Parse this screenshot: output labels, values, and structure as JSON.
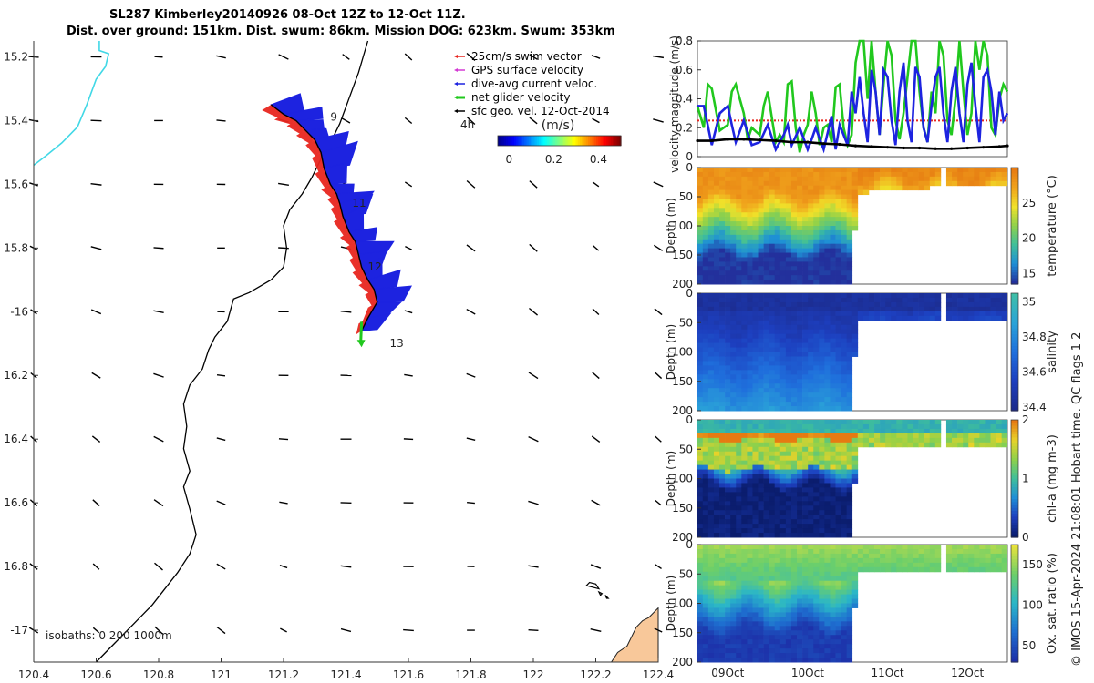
{
  "header": {
    "line1": "SL287 Kimberley20140926 08-Oct 12Z to 12-Oct 11Z.",
    "line2": "Dist. over ground: 151km. Dist. swum: 86km. Mission DOG: 623km. Swum: 353km"
  },
  "credit": "© IMOS 15-Apr-2024 21:08:01 Hobart time. QC flags 1  2",
  "colors": {
    "swim": "#e8261f",
    "gps": "#d43ad4",
    "dive": "#1d23e0",
    "net": "#21c81e",
    "geo": "#000000",
    "coast": "#000000",
    "isobath": "#41d8e6",
    "land": "#f8c89a"
  },
  "chart_data": [
    {
      "type": "map",
      "name": "track map",
      "xlim": [
        120.4,
        122.4
      ],
      "ylim": [
        -17.1,
        -15.15
      ],
      "xticks": [
        {
          "v": 120.4,
          "t": "120.4"
        },
        {
          "v": 120.6,
          "t": "120.6"
        },
        {
          "v": 120.8,
          "t": "120.8"
        },
        {
          "v": 121,
          "t": "121"
        },
        {
          "v": 121.2,
          "t": "121.2"
        },
        {
          "v": 121.4,
          "t": "121.4"
        },
        {
          "v": 121.6,
          "t": "121.6"
        },
        {
          "v": 121.8,
          "t": "121.8"
        },
        {
          "v": 122,
          "t": "122"
        },
        {
          "v": 122.2,
          "t": "122.2"
        },
        {
          "v": 122.4,
          "t": "122.4"
        }
      ],
      "yticks": [
        {
          "v": -15.2,
          "t": "15.2"
        },
        {
          "v": -15.4,
          "t": "15.4"
        },
        {
          "v": -15.6,
          "t": "15.6"
        },
        {
          "v": -15.8,
          "t": "15.8"
        },
        {
          "v": -16.0,
          "t": "-16"
        },
        {
          "v": -16.2,
          "t": "16.2"
        },
        {
          "v": -16.4,
          "t": "16.4"
        },
        {
          "v": -16.6,
          "t": "16.6"
        },
        {
          "v": -16.8,
          "t": "16.8"
        },
        {
          "v": -17.0,
          "t": "-17"
        }
      ],
      "legend": [
        {
          "key": "swim",
          "label": "25cm/s swim vector"
        },
        {
          "key": "gps",
          "label": "GPS surface velocity"
        },
        {
          "key": "dive",
          "label": "dive-avg current veloc."
        },
        {
          "key": "net",
          "label": "net glider velocity"
        },
        {
          "key": "geo",
          "label": "sfc geo. vel. 12-Oct-2014"
        }
      ],
      "colorbar": {
        "label": "(m/s)",
        "ticks": [
          {
            "v": 0,
            "t": "0"
          },
          {
            "v": 0.2,
            "t": "0.2"
          },
          {
            "v": 0.4,
            "t": "0.4"
          }
        ],
        "range": [
          -0.05,
          0.5
        ]
      },
      "extra_labels": {
        "hours": "4h",
        "isobaths": "isobaths: 0   200  1000m"
      },
      "day_labels": [
        {
          "t": "9",
          "lon": 121.35,
          "lat": -15.4
        },
        {
          "t": "11",
          "lon": 121.42,
          "lat": -15.67
        },
        {
          "t": "12",
          "lon": 121.47,
          "lat": -15.87
        },
        {
          "t": "13",
          "lon": 121.54,
          "lat": -16.11
        }
      ],
      "track": [
        [
          121.16,
          -15.35
        ],
        [
          121.2,
          -15.38
        ],
        [
          121.24,
          -15.4
        ],
        [
          121.27,
          -15.43
        ],
        [
          121.3,
          -15.46
        ],
        [
          121.32,
          -15.5
        ],
        [
          121.33,
          -15.55
        ],
        [
          121.35,
          -15.6
        ],
        [
          121.37,
          -15.63
        ],
        [
          121.38,
          -15.66
        ],
        [
          121.39,
          -15.7
        ],
        [
          121.41,
          -15.75
        ],
        [
          121.43,
          -15.78
        ],
        [
          121.44,
          -15.82
        ],
        [
          121.45,
          -15.86
        ],
        [
          121.47,
          -15.9
        ],
        [
          121.49,
          -15.93
        ],
        [
          121.5,
          -15.97
        ],
        [
          121.47,
          -16.02
        ],
        [
          121.45,
          -16.06
        ]
      ],
      "coastline": [
        [
          121.47,
          -15.15
        ],
        [
          121.44,
          -15.25
        ],
        [
          121.41,
          -15.33
        ],
        [
          121.38,
          -15.41
        ],
        [
          121.35,
          -15.47
        ],
        [
          121.32,
          -15.52
        ],
        [
          121.29,
          -15.58
        ],
        [
          121.26,
          -15.63
        ],
        [
          121.22,
          -15.68
        ],
        [
          121.2,
          -15.73
        ],
        [
          121.21,
          -15.8
        ],
        [
          121.2,
          -15.86
        ],
        [
          121.16,
          -15.9
        ],
        [
          121.09,
          -15.94
        ],
        [
          121.04,
          -15.96
        ],
        [
          121.02,
          -16.03
        ],
        [
          120.98,
          -16.08
        ],
        [
          120.96,
          -16.12
        ],
        [
          120.94,
          -16.18
        ],
        [
          120.9,
          -16.23
        ],
        [
          120.88,
          -16.29
        ],
        [
          120.89,
          -16.36
        ],
        [
          120.88,
          -16.43
        ],
        [
          120.9,
          -16.5
        ],
        [
          120.88,
          -16.55
        ],
        [
          120.9,
          -16.62
        ],
        [
          120.92,
          -16.7
        ],
        [
          120.9,
          -16.76
        ],
        [
          120.86,
          -16.82
        ],
        [
          120.82,
          -16.87
        ],
        [
          120.78,
          -16.92
        ],
        [
          120.74,
          -16.96
        ],
        [
          120.7,
          -17.0
        ],
        [
          120.66,
          -17.04
        ],
        [
          120.6,
          -17.1
        ]
      ],
      "isobath": [
        [
          120.61,
          -15.15
        ],
        [
          120.61,
          -15.18
        ],
        [
          120.64,
          -15.19
        ],
        [
          120.63,
          -15.23
        ],
        [
          120.6,
          -15.27
        ],
        [
          120.57,
          -15.35
        ],
        [
          120.54,
          -15.42
        ],
        [
          120.49,
          -15.47
        ],
        [
          120.44,
          -15.51
        ],
        [
          120.4,
          -15.54
        ]
      ],
      "islands": [
        [
          [
            122.18,
            -16.85
          ],
          [
            122.2,
            -16.855
          ],
          [
            122.21,
            -16.87
          ],
          [
            122.19,
            -16.865
          ],
          [
            122.17,
            -16.86
          ]
        ],
        [
          [
            122.21,
            -16.88
          ],
          [
            122.22,
            -16.885
          ],
          [
            122.215,
            -16.89
          ]
        ],
        [
          [
            122.23,
            -16.89
          ],
          [
            122.24,
            -16.9
          ],
          [
            122.235,
            -16.9
          ]
        ]
      ],
      "land": [
        [
          122.4,
          -16.93
        ],
        [
          122.37,
          -16.96
        ],
        [
          122.35,
          -16.97
        ],
        [
          122.33,
          -16.99
        ],
        [
          122.32,
          -17.01
        ],
        [
          122.3,
          -17.05
        ],
        [
          122.27,
          -17.07
        ],
        [
          122.25,
          -17.1
        ],
        [
          122.4,
          -17.1
        ]
      ]
    },
    {
      "type": "line",
      "name": "velocity magnitude",
      "ylabel": "velocity magnitude (m/s)",
      "xlim": [
        8.62,
        12.5
      ],
      "ylim": [
        0,
        0.8
      ],
      "yticks": [
        0,
        0.2,
        0.4,
        0.6,
        0.8
      ],
      "series": [
        {
          "name": "swim speed",
          "color_key": "swim",
          "style": "dotted",
          "x": [
            8.62,
            12.5
          ],
          "y": [
            0.25,
            0.25
          ]
        },
        {
          "name": "net glider velocity",
          "color_key": "net",
          "x": [
            8.62,
            8.7,
            8.75,
            8.8,
            8.9,
            9.0,
            9.05,
            9.1,
            9.2,
            9.25,
            9.3,
            9.4,
            9.45,
            9.5,
            9.6,
            9.65,
            9.7,
            9.75,
            9.8,
            9.85,
            9.9,
            9.95,
            10.0,
            10.05,
            10.1,
            10.15,
            10.2,
            10.25,
            10.3,
            10.35,
            10.4,
            10.45,
            10.5,
            10.55,
            10.6,
            10.65,
            10.7,
            10.75,
            10.8,
            10.85,
            10.9,
            10.95,
            11.0,
            11.05,
            11.1,
            11.15,
            11.2,
            11.25,
            11.3,
            11.35,
            11.4,
            11.45,
            11.5,
            11.55,
            11.6,
            11.65,
            11.7,
            11.75,
            11.8,
            11.85,
            11.9,
            11.95,
            12.0,
            12.05,
            12.1,
            12.15,
            12.2,
            12.25,
            12.3,
            12.35,
            12.4,
            12.45,
            12.5
          ],
          "y": [
            0.35,
            0.2,
            0.5,
            0.47,
            0.18,
            0.22,
            0.45,
            0.5,
            0.3,
            0.12,
            0.2,
            0.15,
            0.35,
            0.45,
            0.1,
            0.15,
            0.1,
            0.5,
            0.52,
            0.2,
            0.03,
            0.15,
            0.22,
            0.45,
            0.3,
            0.08,
            0.2,
            0.22,
            0.1,
            0.48,
            0.5,
            0.2,
            0.08,
            0.15,
            0.65,
            0.8,
            0.8,
            0.4,
            0.8,
            0.45,
            0.15,
            0.5,
            0.8,
            0.7,
            0.25,
            0.12,
            0.3,
            0.55,
            0.8,
            0.8,
            0.45,
            0.2,
            0.1,
            0.45,
            0.3,
            0.8,
            0.7,
            0.25,
            0.15,
            0.4,
            0.8,
            0.45,
            0.15,
            0.3,
            0.8,
            0.6,
            0.8,
            0.7,
            0.2,
            0.15,
            0.4,
            0.5,
            0.45
          ]
        },
        {
          "name": "dive-avg current",
          "color_key": "dive",
          "x": [
            8.62,
            8.7,
            8.8,
            8.9,
            9.0,
            9.05,
            9.1,
            9.2,
            9.3,
            9.4,
            9.5,
            9.6,
            9.7,
            9.75,
            9.8,
            9.9,
            10.0,
            10.05,
            10.1,
            10.2,
            10.3,
            10.35,
            10.4,
            10.5,
            10.55,
            10.6,
            10.65,
            10.7,
            10.75,
            10.8,
            10.85,
            10.9,
            10.95,
            11.0,
            11.05,
            11.1,
            11.15,
            11.2,
            11.25,
            11.3,
            11.35,
            11.4,
            11.45,
            11.5,
            11.55,
            11.6,
            11.65,
            11.7,
            11.75,
            11.8,
            11.85,
            11.9,
            11.95,
            12.0,
            12.05,
            12.1,
            12.15,
            12.2,
            12.25,
            12.3,
            12.35,
            12.4,
            12.45,
            12.5
          ],
          "y": [
            0.35,
            0.35,
            0.08,
            0.3,
            0.35,
            0.22,
            0.1,
            0.25,
            0.08,
            0.1,
            0.22,
            0.05,
            0.15,
            0.22,
            0.08,
            0.2,
            0.05,
            0.12,
            0.2,
            0.05,
            0.28,
            0.05,
            0.22,
            0.08,
            0.45,
            0.3,
            0.55,
            0.3,
            0.1,
            0.6,
            0.45,
            0.15,
            0.6,
            0.55,
            0.25,
            0.08,
            0.45,
            0.65,
            0.25,
            0.1,
            0.62,
            0.55,
            0.2,
            0.1,
            0.35,
            0.55,
            0.62,
            0.3,
            0.1,
            0.45,
            0.62,
            0.3,
            0.1,
            0.5,
            0.65,
            0.35,
            0.1,
            0.55,
            0.6,
            0.45,
            0.15,
            0.45,
            0.25,
            0.3
          ]
        },
        {
          "name": "sfc geo. vel.",
          "color_key": "geo",
          "x": [
            8.62,
            8.8,
            9.0,
            9.2,
            9.4,
            9.6,
            9.8,
            10.0,
            10.2,
            10.4,
            10.6,
            10.8,
            11.0,
            11.2,
            11.4,
            11.6,
            11.8,
            12.0,
            12.2,
            12.4,
            12.5
          ],
          "y": [
            0.11,
            0.11,
            0.12,
            0.12,
            0.115,
            0.11,
            0.1,
            0.1,
            0.09,
            0.085,
            0.075,
            0.07,
            0.065,
            0.06,
            0.06,
            0.055,
            0.055,
            0.06,
            0.065,
            0.07,
            0.075
          ]
        }
      ]
    },
    {
      "type": "heatmap",
      "name": "temperature section",
      "ylabel": "Depth (m)",
      "cblabel": "temperature (°C)",
      "xlim": [
        8.62,
        12.5
      ],
      "ylim": [
        0,
        200
      ],
      "yticks": [
        0,
        50,
        100,
        150,
        200
      ],
      "cbticks": [
        {
          "v": 15,
          "t": "15"
        },
        {
          "v": 20,
          "t": "20"
        },
        {
          "v": 25,
          "t": "25"
        }
      ],
      "cbrange": [
        13.5,
        30
      ],
      "gaps": [
        [
          11.7,
          11.72
        ]
      ],
      "max_depth": [
        [
          8.62,
          200
        ],
        [
          10.55,
          200
        ],
        [
          10.62,
          45
        ],
        [
          10.8,
          35
        ],
        [
          11.7,
          30
        ],
        [
          12.5,
          30
        ]
      ],
      "colors": [
        "#23309c",
        "#1e8fd6",
        "#3fbf9a",
        "#8fd14a",
        "#f0e22a",
        "#f0a31c",
        "#e67a12"
      ]
    },
    {
      "type": "heatmap",
      "name": "salinity section",
      "ylabel": "Depth (m)",
      "cblabel": "salinity",
      "xlim": [
        8.62,
        12.5
      ],
      "ylim": [
        0,
        200
      ],
      "yticks": [
        0,
        50,
        100,
        150,
        200
      ],
      "cbticks": [
        {
          "v": 34.4,
          "t": "34.4"
        },
        {
          "v": 34.6,
          "t": "34.6"
        },
        {
          "v": 34.8,
          "t": "34.8"
        },
        {
          "v": 35,
          "t": "35"
        }
      ],
      "cbrange": [
        34.38,
        35.05
      ],
      "gaps": [
        [
          11.7,
          11.72
        ]
      ],
      "max_depth": [
        [
          8.62,
          200
        ],
        [
          10.55,
          200
        ],
        [
          10.62,
          45
        ],
        [
          10.8,
          40
        ],
        [
          11.7,
          40
        ],
        [
          12.5,
          40
        ]
      ],
      "colors": [
        "#1c2b8c",
        "#1d3fbf",
        "#1f6fdc",
        "#2aa3d8",
        "#3fbfa8"
      ]
    },
    {
      "type": "heatmap",
      "name": "chlorophyll section",
      "ylabel": "Depth (m)",
      "cblabel": "chl-a (mg m-3)",
      "xlim": [
        8.62,
        12.5
      ],
      "ylim": [
        0,
        200
      ],
      "yticks": [
        0,
        50,
        100,
        150,
        200
      ],
      "cbticks": [
        {
          "v": 0,
          "t": "0"
        },
        {
          "v": 1,
          "t": "1"
        },
        {
          "v": 2,
          "t": "2"
        }
      ],
      "cbrange": [
        0,
        2
      ],
      "gaps": [
        [
          11.7,
          11.72
        ]
      ],
      "max_depth": [
        [
          8.62,
          200
        ],
        [
          10.55,
          200
        ],
        [
          10.62,
          45
        ],
        [
          12.5,
          45
        ]
      ],
      "colors": [
        "#0b1d6e",
        "#1d3fbf",
        "#1f8fd6",
        "#3fbf9a",
        "#8fd14a",
        "#e8d22a",
        "#e67a12"
      ]
    },
    {
      "type": "heatmap",
      "name": "oxygen section",
      "ylabel": "Depth (m)",
      "cblabel": "Ox. sat. ratio (%)",
      "xlim": [
        8.62,
        12.5
      ],
      "ylim": [
        0,
        200
      ],
      "yticks": [
        0,
        50,
        100,
        150,
        200
      ],
      "cbticks": [
        {
          "v": 50,
          "t": "50"
        },
        {
          "v": 100,
          "t": "100"
        },
        {
          "v": 150,
          "t": "150"
        }
      ],
      "cbrange": [
        30,
        175
      ],
      "gaps": [
        [
          11.7,
          11.72
        ]
      ],
      "max_depth": [
        [
          8.62,
          200
        ],
        [
          10.55,
          200
        ],
        [
          10.62,
          45
        ],
        [
          12.5,
          45
        ]
      ],
      "xticks": [
        {
          "v": 9,
          "t": "09Oct"
        },
        {
          "v": 10,
          "t": "10Oct"
        },
        {
          "v": 11,
          "t": "11Oct"
        },
        {
          "v": 12,
          "t": "12Oct"
        }
      ],
      "colors": [
        "#1d2fa8",
        "#1e6fd0",
        "#2ab6c8",
        "#6ccf6a",
        "#e8e23a"
      ]
    }
  ]
}
